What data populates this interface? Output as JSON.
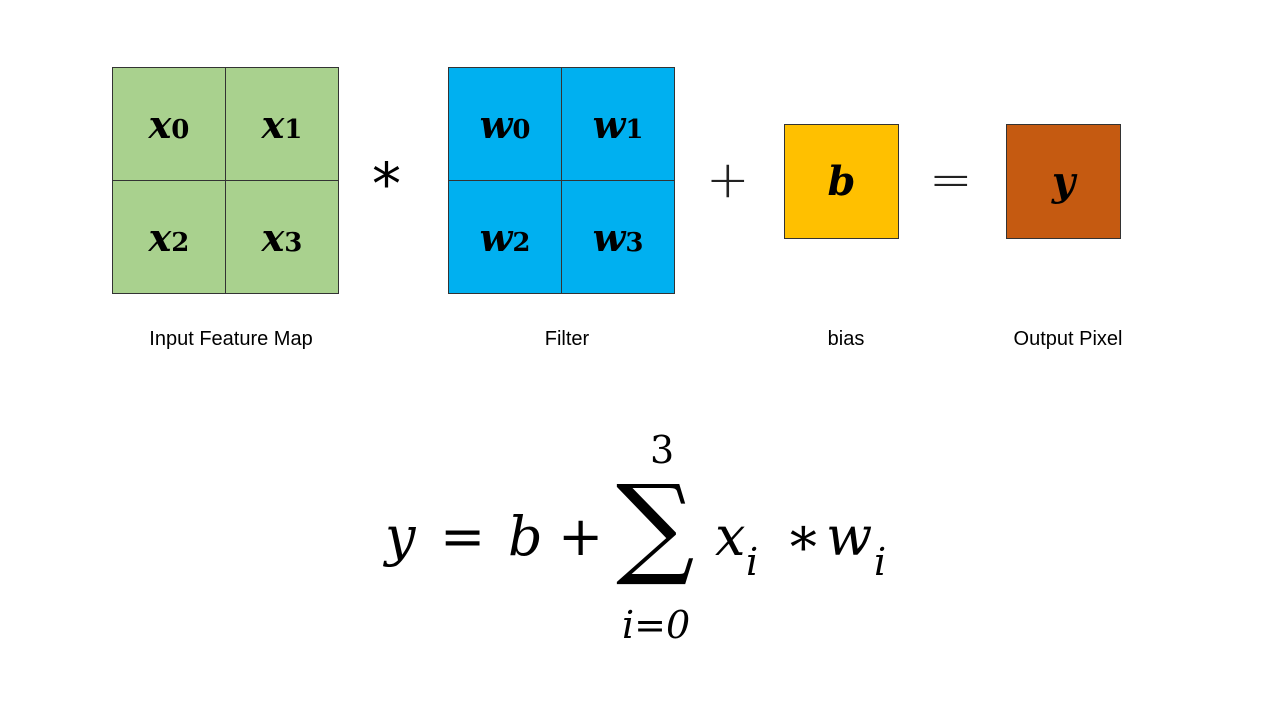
{
  "input_map": {
    "cells": [
      {
        "var": "x",
        "sub": "0"
      },
      {
        "var": "x",
        "sub": "1"
      },
      {
        "var": "x",
        "sub": "2"
      },
      {
        "var": "x",
        "sub": "3"
      }
    ],
    "caption": "Input Feature Map",
    "color": "#a9d18e"
  },
  "filter": {
    "cells": [
      {
        "var": "w",
        "sub": "0"
      },
      {
        "var": "w",
        "sub": "1"
      },
      {
        "var": "w",
        "sub": "2"
      },
      {
        "var": "w",
        "sub": "3"
      }
    ],
    "caption": "Filter",
    "color": "#00b0f0"
  },
  "bias": {
    "symbol": "b",
    "caption": "bias",
    "color": "#ffc000"
  },
  "output": {
    "symbol": "y",
    "caption": "Output Pixel",
    "color": "#c55a11"
  },
  "operators": {
    "conv": "*",
    "plus": "+",
    "equals": "="
  },
  "formula": {
    "lhs": "y",
    "equals": "=",
    "bias": "b",
    "plus": "+",
    "sum_symbol": "∑",
    "upper_limit": "3",
    "lower_limit": "i=0",
    "x": "x",
    "x_index": "i",
    "times": "∗",
    "w": "w",
    "w_index": "i"
  }
}
